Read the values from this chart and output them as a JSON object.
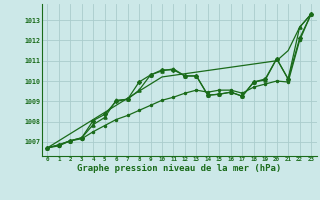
{
  "bg_color": "#cce8e8",
  "grid_color": "#aacccc",
  "line_color": "#1a6b1a",
  "xlabel": "Graphe pression niveau de la mer (hPa)",
  "xlabel_fontsize": 6.5,
  "ylabel_ticks": [
    1007,
    1008,
    1009,
    1010,
    1011,
    1012,
    1013
  ],
  "xlim": [
    -0.5,
    23.5
  ],
  "ylim": [
    1006.3,
    1013.8
  ],
  "line_straight": [
    1006.7,
    1007.05,
    1007.4,
    1007.75,
    1008.1,
    1008.45,
    1008.8,
    1009.15,
    1009.5,
    1009.85,
    1010.2,
    1010.28,
    1010.36,
    1010.44,
    1010.52,
    1010.6,
    1010.68,
    1010.76,
    1010.84,
    1010.92,
    1011.0,
    1011.5,
    1012.65,
    1013.3
  ],
  "line_peak": [
    1006.7,
    1006.85,
    1007.05,
    1007.2,
    1008.05,
    1008.35,
    1009.0,
    1009.1,
    1009.95,
    1010.3,
    1010.55,
    1010.55,
    1010.25,
    1010.25,
    1009.3,
    1009.35,
    1009.45,
    1009.25,
    1009.95,
    1010.1,
    1011.1,
    1010.1,
    1012.1,
    1013.3
  ],
  "line_mid": [
    1006.7,
    1006.85,
    1007.05,
    1007.2,
    1007.85,
    1008.2,
    1009.05,
    1009.1,
    1009.55,
    1010.3,
    1010.5,
    1010.6,
    1010.25,
    1010.25,
    1009.3,
    1009.35,
    1009.45,
    1009.25,
    1009.95,
    1010.05,
    1011.1,
    1010.1,
    1012.65,
    1013.3
  ],
  "line_low": [
    1006.7,
    1006.8,
    1007.05,
    1007.15,
    1007.5,
    1007.8,
    1008.1,
    1008.3,
    1008.55,
    1008.8,
    1009.05,
    1009.2,
    1009.4,
    1009.55,
    1009.45,
    1009.55,
    1009.55,
    1009.4,
    1009.7,
    1009.85,
    1010.0,
    1009.95,
    1012.0,
    1013.3
  ]
}
